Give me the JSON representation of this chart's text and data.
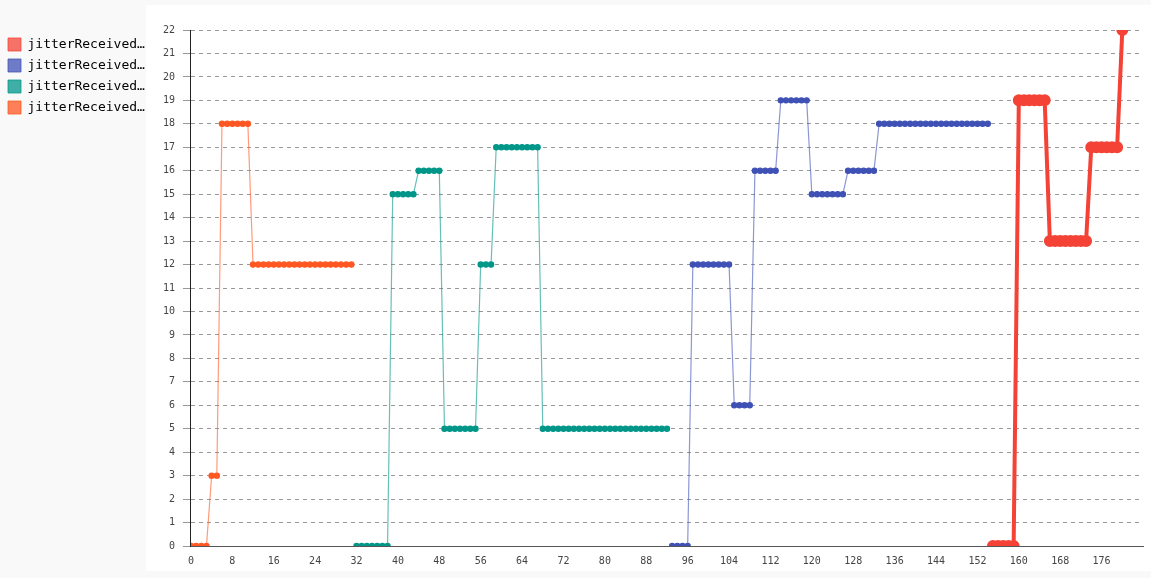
{
  "chart_data": {
    "type": "line",
    "legend": "top left",
    "grid": "y",
    "marker": "circle",
    "line_style": "solid",
    "xlim": [
      0,
      184
    ],
    "xticks": [
      0,
      8,
      16,
      24,
      32,
      40,
      48,
      56,
      64,
      72,
      80,
      88,
      96,
      104,
      112,
      120,
      128,
      136,
      144,
      152,
      160,
      168,
      176
    ],
    "ylim": [
      0,
      22
    ],
    "yticks": [
      0,
      1,
      2,
      3,
      4,
      5,
      6,
      7,
      8,
      9,
      10,
      11,
      12,
      13,
      14,
      15,
      16,
      17,
      18,
      19,
      20,
      21,
      22
    ],
    "series": [
      {
        "name": "jitterReceived…",
        "color": "#f44336",
        "x": [
          155,
          156,
          157,
          158,
          159,
          160,
          161,
          162,
          163,
          164,
          165,
          166,
          167,
          168,
          169,
          170,
          171,
          172,
          173,
          174,
          175,
          176,
          177,
          178,
          179,
          180
        ],
        "values": [
          0,
          0,
          0,
          0,
          0,
          19,
          19,
          19,
          19,
          19,
          19,
          13,
          13,
          13,
          13,
          13,
          13,
          13,
          13,
          17,
          17,
          17,
          17,
          17,
          17,
          22
        ]
      },
      {
        "name": "jitterReceived…",
        "color": "#3f51b5",
        "x": [
          93,
          94,
          95,
          96,
          97,
          98,
          99,
          100,
          101,
          102,
          103,
          104,
          105,
          106,
          107,
          108,
          109,
          110,
          111,
          112,
          113,
          114,
          115,
          116,
          117,
          118,
          119,
          120,
          121,
          122,
          123,
          124,
          125,
          126,
          127,
          128,
          129,
          130,
          131,
          132,
          133,
          134,
          135,
          136,
          137,
          138,
          139,
          140,
          141,
          142,
          143,
          144,
          145,
          146,
          147,
          148,
          149,
          150,
          151,
          152,
          153,
          154
        ],
        "values": [
          0,
          0,
          0,
          0,
          12,
          12,
          12,
          12,
          12,
          12,
          12,
          12,
          6,
          6,
          6,
          6,
          16,
          16,
          16,
          16,
          16,
          19,
          19,
          19,
          19,
          19,
          19,
          15,
          15,
          15,
          15,
          15,
          15,
          15,
          16,
          16,
          16,
          16,
          16,
          16,
          18,
          18,
          18,
          18,
          18,
          18,
          18,
          18,
          18,
          18,
          18,
          18,
          18,
          18,
          18,
          18,
          18,
          18,
          18,
          18,
          18,
          18
        ]
      },
      {
        "name": "jitterReceived…",
        "color": "#009688",
        "x": [
          32,
          33,
          34,
          35,
          36,
          37,
          38,
          39,
          40,
          41,
          42,
          43,
          44,
          45,
          46,
          47,
          48,
          49,
          50,
          51,
          52,
          53,
          54,
          55,
          56,
          57,
          58,
          59,
          60,
          61,
          62,
          63,
          64,
          65,
          66,
          67,
          68,
          69,
          70,
          71,
          72,
          73,
          74,
          75,
          76,
          77,
          78,
          79,
          80,
          81,
          82,
          83,
          84,
          85,
          86,
          87,
          88,
          89,
          90,
          91,
          92
        ],
        "values": [
          0,
          0,
          0,
          0,
          0,
          0,
          0,
          15,
          15,
          15,
          15,
          15,
          16,
          16,
          16,
          16,
          16,
          5,
          5,
          5,
          5,
          5,
          5,
          5,
          12,
          12,
          12,
          17,
          17,
          17,
          17,
          17,
          17,
          17,
          17,
          17,
          5,
          5,
          5,
          5,
          5,
          5,
          5,
          5,
          5,
          5,
          5,
          5,
          5,
          5,
          5,
          5,
          5,
          5,
          5,
          5,
          5,
          5,
          5,
          5,
          5
        ]
      },
      {
        "name": "jitterReceived…",
        "color": "#ff5722",
        "x": [
          0,
          1,
          2,
          3,
          4,
          5,
          6,
          7,
          8,
          9,
          10,
          11,
          12,
          13,
          14,
          15,
          16,
          17,
          18,
          19,
          20,
          21,
          22,
          23,
          24,
          25,
          26,
          27,
          28,
          29,
          30,
          31
        ],
        "values": [
          0,
          0,
          0,
          0,
          3,
          3,
          18,
          18,
          18,
          18,
          18,
          18,
          12,
          12,
          12,
          12,
          12,
          12,
          12,
          12,
          12,
          12,
          12,
          12,
          12,
          12,
          12,
          12,
          12,
          12,
          12,
          12
        ]
      }
    ]
  }
}
